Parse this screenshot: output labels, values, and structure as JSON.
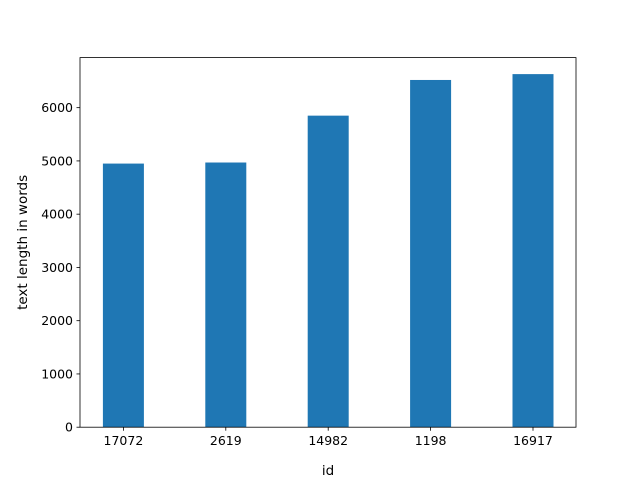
{
  "chart_data": {
    "type": "bar",
    "categories": [
      "17072",
      "2619",
      "14982",
      "1198",
      "16917"
    ],
    "values": [
      4950,
      4970,
      5850,
      6520,
      6630
    ],
    "title": "",
    "xlabel": "id",
    "ylabel": "text length in words",
    "ylim": [
      0,
      6940
    ],
    "yticks": [
      0,
      1000,
      2000,
      3000,
      4000,
      5000,
      6000
    ],
    "grid": false,
    "legend": "none",
    "bar_color": "#1f77b4"
  }
}
